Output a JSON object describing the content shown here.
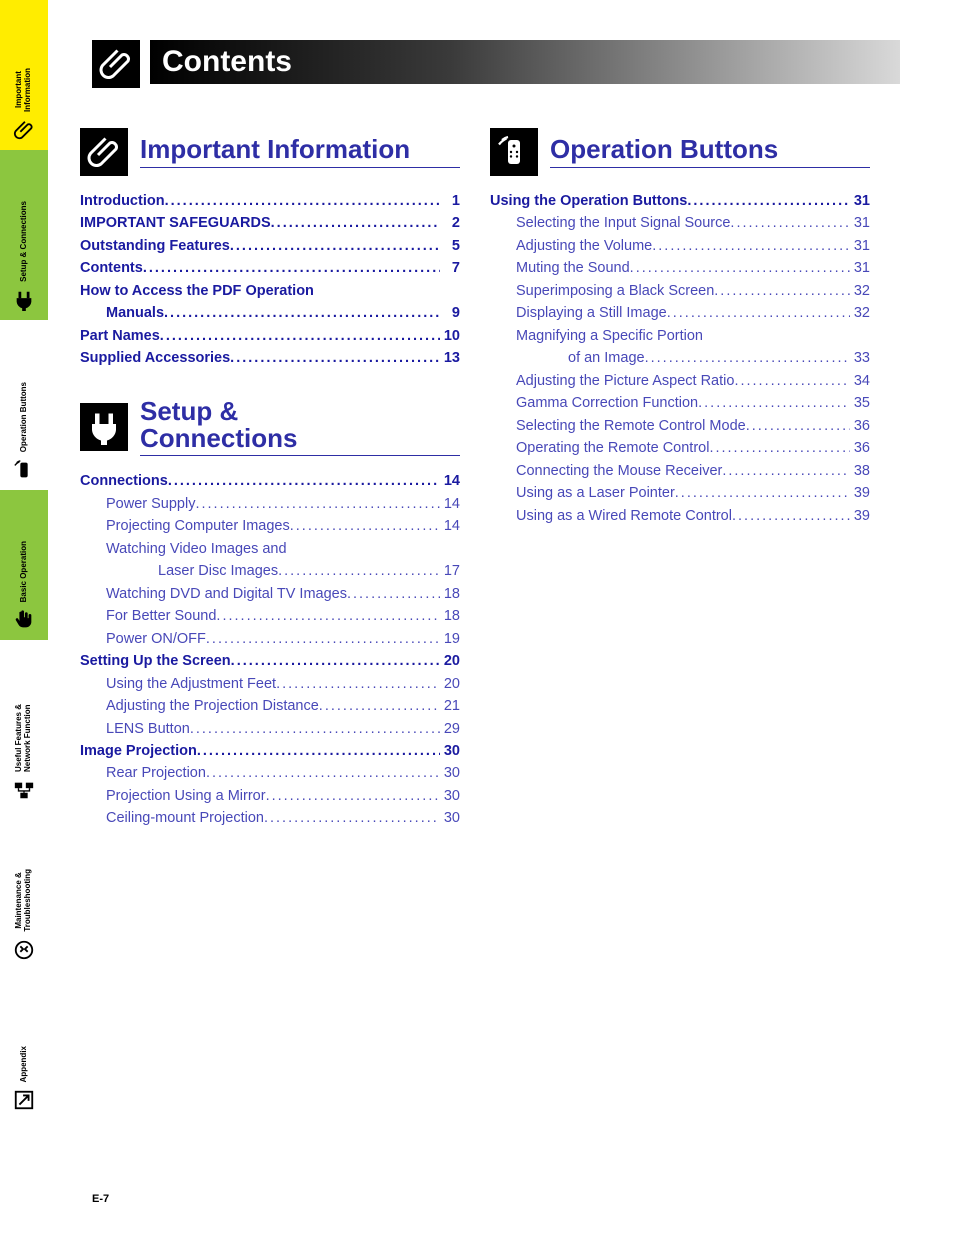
{
  "page_number_label": "E-7",
  "title": "Contents",
  "colors": {
    "heading_blue": "#2e2ea5",
    "link_blue": "#4848b8",
    "sidebar_active_bg": "#ffed00",
    "sidebar_green_bg": "#8cc63f",
    "black": "#000000",
    "white": "#ffffff"
  },
  "sidebar": {
    "tabs": [
      {
        "label": "Important\nInformation",
        "bg": "#ffed00",
        "icon": "paperclip"
      },
      {
        "label": "Setup & Connections",
        "bg": "#8cc63f",
        "icon": "plug"
      },
      {
        "label": "Operation Buttons",
        "bg": "#ffffff",
        "icon": "remote"
      },
      {
        "label": "Basic Operation",
        "bg": "#8cc63f",
        "icon": "hand"
      },
      {
        "label": "Useful Features &\nNetwork Function",
        "bg": "#ffffff",
        "icon": "network"
      },
      {
        "label": "Maintenance &\nTroubleshooting",
        "bg": "#ffffff",
        "icon": "wrench"
      },
      {
        "label": "Appendix",
        "bg": "#ffffff",
        "icon": "arrow-box"
      }
    ]
  },
  "sections": [
    {
      "icon": "paperclip",
      "title": "Important Information",
      "entries": [
        {
          "label": "Introduction",
          "page": "1",
          "bold": true
        },
        {
          "label": "IMPORTANT SAFEGUARDS",
          "page": "2",
          "bold": true
        },
        {
          "label": "Outstanding Features",
          "page": "5",
          "bold": true
        },
        {
          "label": "Contents",
          "page": "7",
          "bold": true
        },
        {
          "label": "How to Access the PDF Operation",
          "page": "",
          "bold": true,
          "no_page": true
        },
        {
          "label": "Manuals",
          "page": "9",
          "bold": true,
          "cont": true
        },
        {
          "label": "Part Names",
          "page": "10",
          "bold": true
        },
        {
          "label": "Supplied Accessories",
          "page": "13",
          "bold": true
        }
      ]
    },
    {
      "icon": "plug",
      "title": "Setup &\nConnections",
      "entries": [
        {
          "label": "Connections",
          "page": "14",
          "bold": true
        },
        {
          "label": "Power Supply",
          "page": "14",
          "sub": true
        },
        {
          "label": "Projecting Computer Images",
          "page": "14",
          "sub": true
        },
        {
          "label": "Watching Video Images and",
          "page": "",
          "sub": true,
          "no_page": true
        },
        {
          "label": "Laser Disc Images",
          "page": "17",
          "sub": true,
          "cont": true
        },
        {
          "label": "Watching DVD and Digital TV Images",
          "page": "18",
          "sub": true
        },
        {
          "label": "For Better Sound",
          "page": "18",
          "sub": true
        },
        {
          "label": "Power ON/OFF",
          "page": "19",
          "sub": true
        },
        {
          "label": "Setting Up the Screen",
          "page": "20",
          "bold": true
        },
        {
          "label": "Using the Adjustment Feet",
          "page": "20",
          "sub": true
        },
        {
          "label": "Adjusting the Projection Distance",
          "page": "21",
          "sub": true
        },
        {
          "label": "LENS Button",
          "page": "29",
          "sub": true
        },
        {
          "label": "Image Projection",
          "page": "30",
          "bold": true
        },
        {
          "label": "Rear Projection",
          "page": "30",
          "sub": true
        },
        {
          "label": "Projection Using a Mirror",
          "page": "30",
          "sub": true
        },
        {
          "label": "Ceiling-mount Projection",
          "page": "30",
          "sub": true
        }
      ]
    },
    {
      "icon": "remote",
      "title": "Operation Buttons",
      "entries": [
        {
          "label": "Using the Operation Buttons",
          "page": "31",
          "bold": true
        },
        {
          "label": "Selecting the Input Signal Source",
          "page": "31",
          "sub": true
        },
        {
          "label": "Adjusting the Volume",
          "page": "31",
          "sub": true
        },
        {
          "label": "Muting the Sound",
          "page": "31",
          "sub": true
        },
        {
          "label": "Superimposing a Black Screen",
          "page": "32",
          "sub": true
        },
        {
          "label": "Displaying a Still Image",
          "page": "32",
          "sub": true
        },
        {
          "label": "Magnifying a Specific Portion",
          "page": "",
          "sub": true,
          "no_page": true
        },
        {
          "label": "of an Image",
          "page": "33",
          "sub": true,
          "cont": true
        },
        {
          "label": "Adjusting the Picture Aspect Ratio",
          "page": "34",
          "sub": true
        },
        {
          "label": "Gamma Correction Function",
          "page": "35",
          "sub": true
        },
        {
          "label": "Selecting the Remote Control Mode",
          "page": "36",
          "sub": true
        },
        {
          "label": "Operating the Remote Control",
          "page": "36",
          "sub": true
        },
        {
          "label": "Connecting the Mouse Receiver",
          "page": "38",
          "sub": true
        },
        {
          "label": "Using as a Laser Pointer",
          "page": "39",
          "sub": true
        },
        {
          "label": "Using as a Wired Remote Control",
          "page": "39",
          "sub": true
        }
      ]
    }
  ]
}
